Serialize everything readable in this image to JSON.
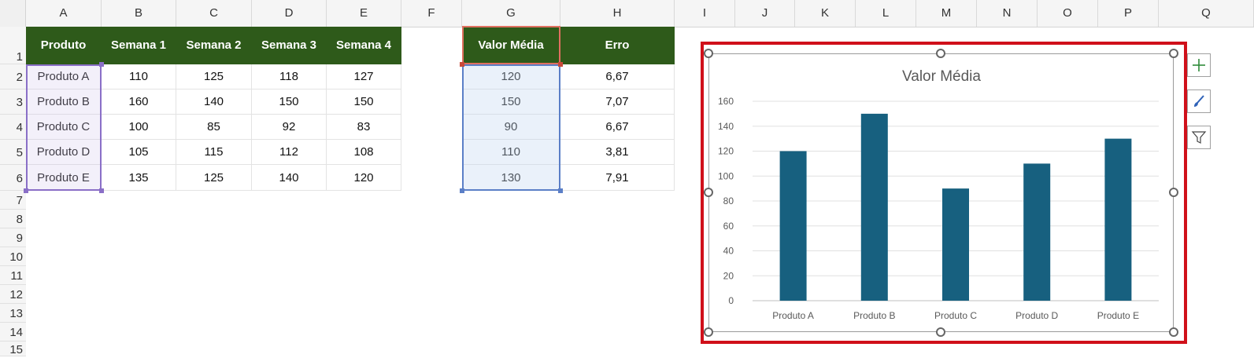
{
  "columns": [
    "A",
    "B",
    "C",
    "D",
    "E",
    "F",
    "G",
    "H",
    "I",
    "J",
    "K",
    "L",
    "M",
    "N",
    "O",
    "P",
    "Q"
  ],
  "rows": [
    "1",
    "2",
    "3",
    "4",
    "5",
    "6",
    "7",
    "8",
    "9",
    "10",
    "11",
    "12",
    "13",
    "14",
    "15"
  ],
  "table1": {
    "headers": [
      "Produto",
      "Semana 1",
      "Semana 2",
      "Semana 3",
      "Semana 4"
    ],
    "rows": [
      [
        "Produto A",
        "110",
        "125",
        "118",
        "127"
      ],
      [
        "Produto B",
        "160",
        "140",
        "150",
        "150"
      ],
      [
        "Produto C",
        "100",
        "85",
        "92",
        "83"
      ],
      [
        "Produto D",
        "105",
        "115",
        "112",
        "108"
      ],
      [
        "Produto E",
        "135",
        "125",
        "140",
        "120"
      ]
    ]
  },
  "table2": {
    "headers": [
      "Valor Média",
      "Erro"
    ],
    "rows": [
      [
        "120",
        "6,67"
      ],
      [
        "150",
        "7,07"
      ],
      [
        "90",
        "6,67"
      ],
      [
        "110",
        "3,81"
      ],
      [
        "130",
        "7,91"
      ]
    ]
  },
  "chart_data": {
    "type": "bar",
    "title": "Valor Média",
    "categories": [
      "Produto A",
      "Produto B",
      "Produto C",
      "Produto D",
      "Produto E"
    ],
    "values": [
      120,
      150,
      90,
      110,
      130
    ],
    "ylim": [
      0,
      160
    ],
    "yticks": [
      "0",
      "20",
      "40",
      "60",
      "80",
      "100",
      "120",
      "140",
      "160"
    ],
    "grid": true,
    "bar_color": "#17607f"
  },
  "colors": {
    "header_bg": "#2e5a1a",
    "selection_border": "#d0101a"
  },
  "side_buttons": [
    "chart-elements-icon",
    "chart-styles-icon",
    "chart-filters-icon"
  ]
}
